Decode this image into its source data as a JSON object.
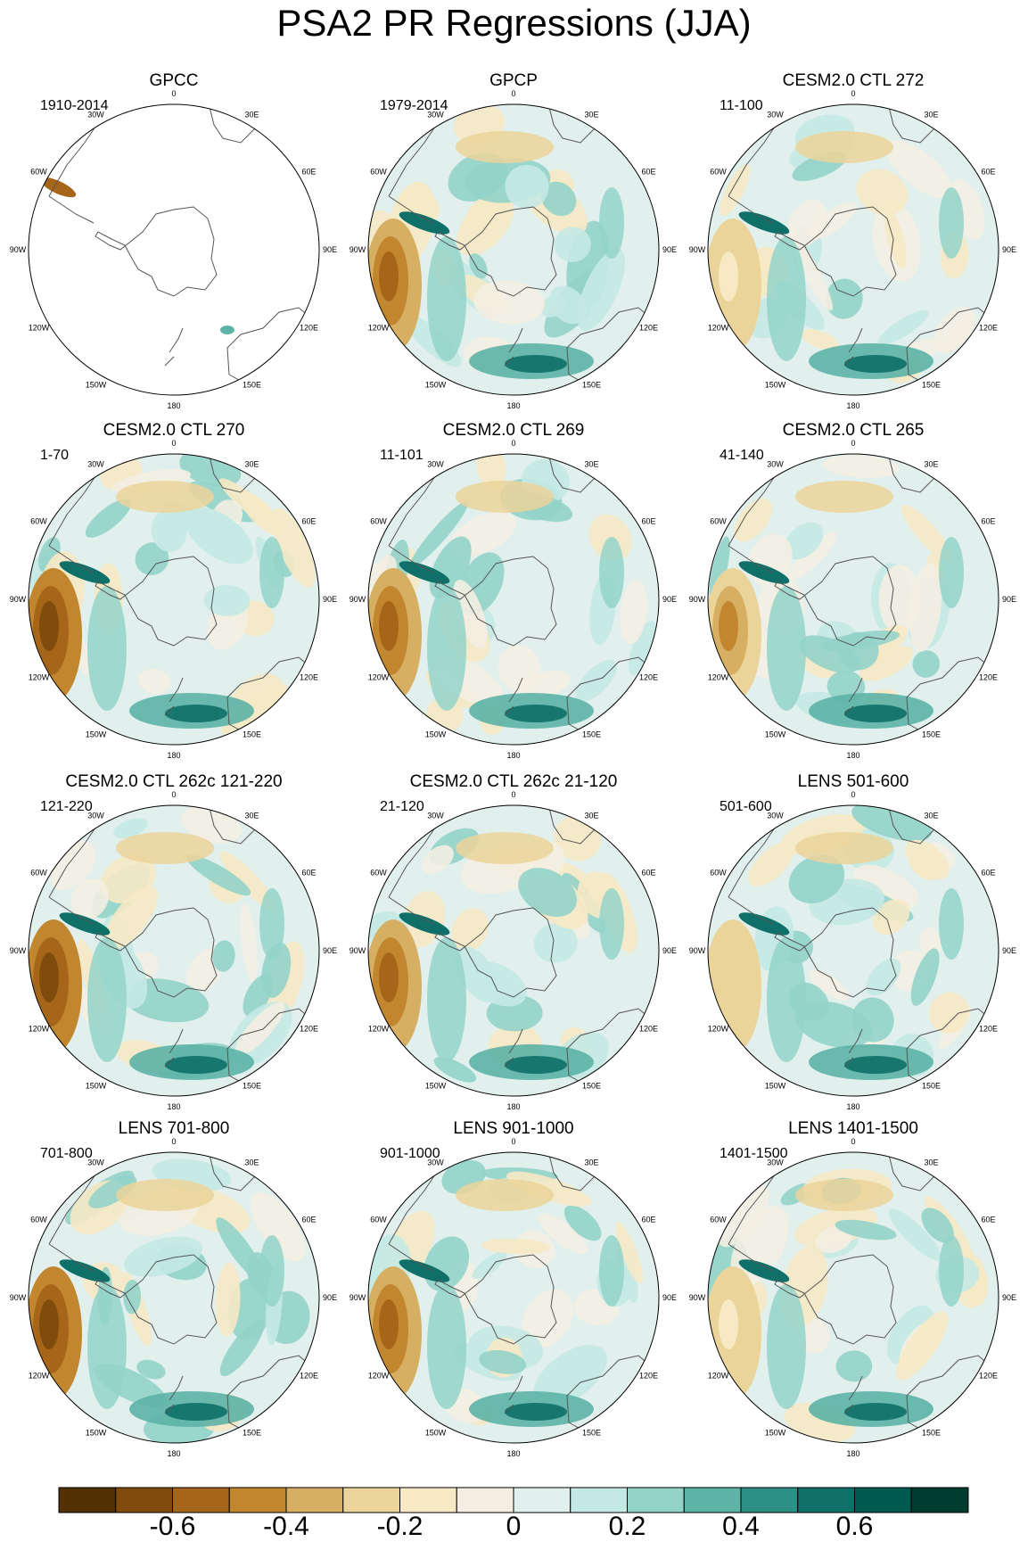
{
  "title": "PSA2 PR Regressions (JJA)",
  "panels": [
    {
      "title": "GPCC",
      "period": "1910-2014"
    },
    {
      "title": "GPCP",
      "period": "1979-2014"
    },
    {
      "title": "CESM2.0 CTL 272",
      "period": "11-100"
    },
    {
      "title": "CESM2.0 CTL 270",
      "period": "1-70"
    },
    {
      "title": "CESM2.0 CTL 269",
      "period": "11-101"
    },
    {
      "title": "CESM2.0 CTL 265",
      "period": "41-140"
    },
    {
      "title": "CESM2.0 CTL 262c 121-220",
      "period": "121-220"
    },
    {
      "title": "CESM2.0 CTL 262c 21-120",
      "period": "21-120"
    },
    {
      "title": "LENS 501-600",
      "period": "501-600"
    },
    {
      "title": "LENS 701-800",
      "period": "701-800"
    },
    {
      "title": "LENS 901-1000",
      "period": "901-1000"
    },
    {
      "title": "LENS 1401-1500",
      "period": "1401-1500"
    }
  ],
  "longitude_labels": [
    "0",
    "30E",
    "60E",
    "90E",
    "120E",
    "150E",
    "180",
    "150W",
    "120W",
    "90W",
    "60W",
    "30W"
  ],
  "colorbar": {
    "ticks": [
      "-0.6",
      "-0.4",
      "-0.2",
      "0",
      "0.2",
      "0.4",
      "0.6"
    ],
    "colors": [
      "#543005",
      "#7f4c0d",
      "#a6661a",
      "#c2862f",
      "#d7af63",
      "#ebd49a",
      "#f6e9c4",
      "#f4eee2",
      "#e1efed",
      "#c4e9e3",
      "#93d3c9",
      "#5cb3a6",
      "#2d9086",
      "#0e7068",
      "#005a4f",
      "#003c30"
    ]
  }
}
